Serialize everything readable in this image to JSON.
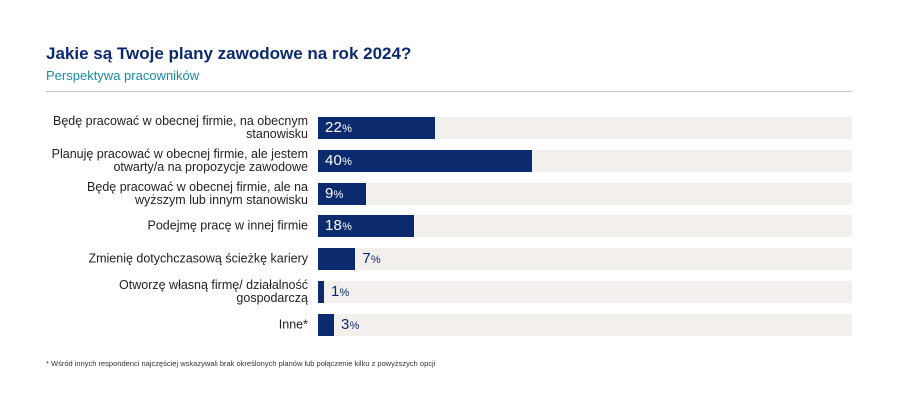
{
  "header": {
    "title": "Jakie są Twoje plany zawodowe na rok 2024?",
    "subtitle": "Perspektywa pracowników"
  },
  "chart_data": {
    "type": "bar",
    "orientation": "horizontal",
    "title": "Jakie są Twoje plany zawodowe na rok 2024?",
    "subtitle": "Perspektywa pracowników",
    "unit": "%",
    "xlim": [
      0,
      100
    ],
    "categories": [
      "Będę pracować w obecnej firmie, na obecnym stanowisku",
      "Planuję pracować w obecnej firmie, ale jestem otwarty/a na propozycje zawodowe",
      "Będę pracować w obecnej firmie, ale na wyższym lub innym stanowisku",
      "Podejmę pracę w innej firmie",
      "Zmienię dotychczasową ścieżkę kariery",
      "Otworzę własną firmę/ działalność gospodarczą",
      "Inne*"
    ],
    "values": [
      22,
      40,
      9,
      18,
      7,
      1,
      3
    ],
    "colors": {
      "bar": "#0c2a6e",
      "track": "#f3efec"
    }
  },
  "footnote": "* Wśród innych respondenci najczęściej wskazywali brak określonych planów lub połączenie kilku z powyższych opcji"
}
